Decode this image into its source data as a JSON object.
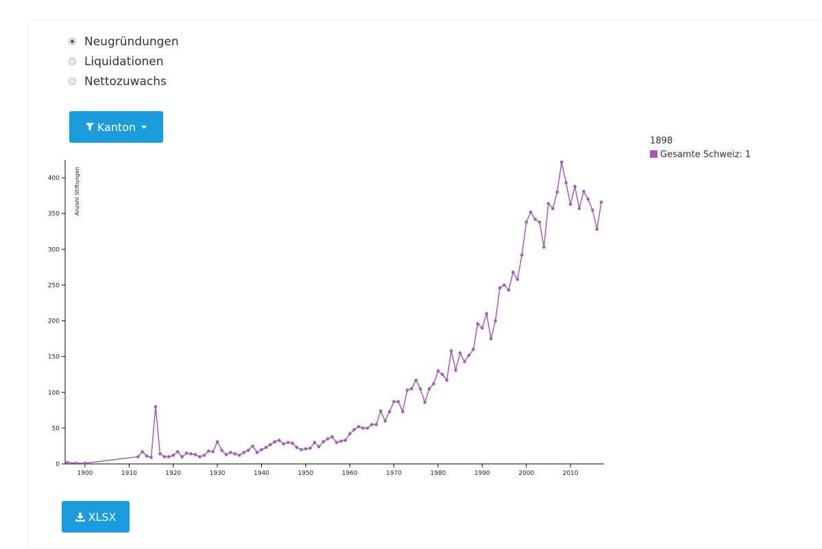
{
  "controls": {
    "options": [
      "Neugründungen",
      "Liquidationen",
      "Nettozuwachs"
    ],
    "selected": 0,
    "filter_button": "Kanton",
    "download_button": "XLSX"
  },
  "hover_legend": {
    "title": "1898",
    "entry": "Gesamte Schweiz: 1"
  },
  "chart_data": {
    "type": "line",
    "y_label": "Anzahl Stiftungen",
    "x": [
      1896,
      1898,
      1900,
      1912,
      1913,
      1914,
      1915,
      1916,
      1917,
      1918,
      1919,
      1920,
      1921,
      1922,
      1923,
      1924,
      1925,
      1926,
      1927,
      1928,
      1929,
      1930,
      1931,
      1932,
      1933,
      1934,
      1935,
      1936,
      1937,
      1938,
      1939,
      1940,
      1941,
      1942,
      1943,
      1944,
      1945,
      1946,
      1947,
      1948,
      1949,
      1950,
      1951,
      1952,
      1953,
      1954,
      1955,
      1956,
      1957,
      1958,
      1959,
      1960,
      1961,
      1962,
      1963,
      1964,
      1965,
      1966,
      1967,
      1968,
      1969,
      1970,
      1971,
      1972,
      1973,
      1974,
      1975,
      1976,
      1977,
      1978,
      1979,
      1980,
      1981,
      1982,
      1983,
      1984,
      1985,
      1986,
      1987,
      1988,
      1989,
      1990,
      1991,
      1992,
      1993,
      1994,
      1995,
      1996,
      1997,
      1998,
      1999,
      2000,
      2001,
      2002,
      2003,
      2004,
      2005,
      2006,
      2007,
      2008,
      2009,
      2010,
      2011,
      2012,
      2013,
      2014,
      2015,
      2016,
      2017
    ],
    "series": [
      {
        "name": "Gesamte Schweiz",
        "color": "#a35bb4",
        "values": [
          2,
          1,
          1,
          10,
          17,
          11,
          9,
          80,
          14,
          10,
          10,
          12,
          17,
          10,
          15,
          14,
          13,
          10,
          12,
          18,
          17,
          31,
          19,
          13,
          16,
          14,
          12,
          16,
          19,
          25,
          16,
          20,
          23,
          27,
          31,
          33,
          28,
          30,
          29,
          23,
          20,
          21,
          22,
          30,
          24,
          31,
          35,
          38,
          30,
          32,
          33,
          42,
          48,
          52,
          50,
          50,
          55,
          55,
          74,
          60,
          73,
          87,
          87,
          73,
          103,
          105,
          117,
          105,
          86,
          105,
          112,
          130,
          125,
          117,
          158,
          131,
          155,
          143,
          152,
          160,
          196,
          190,
          210,
          175,
          200,
          246,
          250,
          243,
          268,
          258,
          292,
          338,
          352,
          342,
          338,
          303,
          364,
          357,
          380,
          422,
          393,
          363,
          388,
          357,
          381,
          370,
          355,
          328,
          366
        ]
      }
    ],
    "xlim": [
      1895.5,
      2017.6
    ],
    "ylim": [
      0,
      425
    ],
    "xticks": [
      1900,
      1910,
      1920,
      1930,
      1940,
      1950,
      1960,
      1970,
      1980,
      1990,
      2000,
      2010
    ],
    "yticks": [
      0,
      50,
      100,
      150,
      200,
      250,
      300,
      350,
      400
    ]
  }
}
